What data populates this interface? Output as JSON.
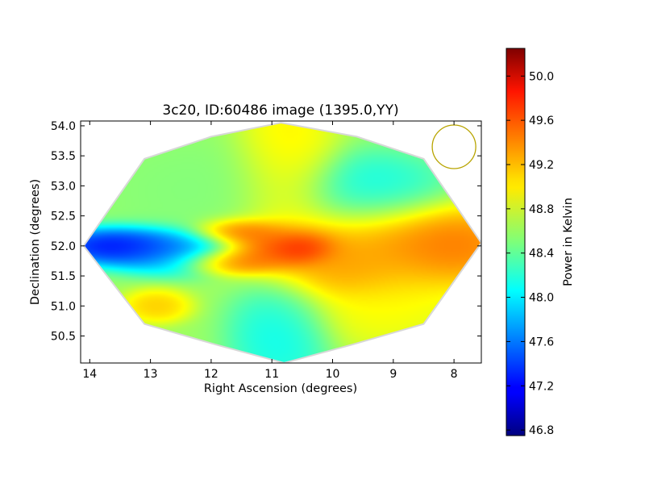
{
  "chart_data": {
    "type": "heatmap",
    "title": "3c20, ID:60486 image (1395.0,YY)",
    "xlabel": "Right Ascension (degrees)",
    "ylabel": "Declination (degrees)",
    "colorbar_label": "Power in Kelvin",
    "xlim": [
      14.15,
      7.55
    ],
    "ylim": [
      50.05,
      54.08
    ],
    "x_ticks": [
      "14",
      "13",
      "12",
      "11",
      "10",
      "9",
      "8"
    ],
    "x_tick_values": [
      14,
      13,
      12,
      11,
      10,
      9,
      8
    ],
    "y_ticks": [
      "50.5",
      "51.0",
      "51.5",
      "52.0",
      "52.5",
      "53.0",
      "53.5",
      "54.0"
    ],
    "y_tick_values": [
      50.5,
      51.0,
      51.5,
      52.0,
      52.5,
      53.0,
      53.5,
      54.0
    ],
    "colorbar_range": [
      46.75,
      50.25
    ],
    "colorbar_ticks": [
      "46.8",
      "47.2",
      "47.6",
      "48.0",
      "48.4",
      "48.8",
      "49.2",
      "49.6",
      "50.0"
    ],
    "colorbar_tick_values": [
      46.8,
      47.2,
      47.6,
      48.0,
      48.4,
      48.8,
      49.2,
      49.6,
      50.0
    ],
    "colormap": "jet",
    "beam_circle": {
      "ra": 8.0,
      "dec": 53.65,
      "color": "#b8a400"
    },
    "footprint_vertices": [
      [
        14.1,
        52.0
      ],
      [
        13.1,
        53.45
      ],
      [
        12.0,
        53.82
      ],
      [
        10.85,
        54.05
      ],
      [
        9.6,
        53.82
      ],
      [
        8.5,
        53.45
      ],
      [
        7.55,
        52.05
      ],
      [
        8.5,
        50.7
      ],
      [
        9.7,
        50.35
      ],
      [
        10.8,
        50.05
      ],
      [
        11.9,
        50.35
      ],
      [
        13.1,
        50.7
      ]
    ],
    "features": [
      {
        "ra": 10.9,
        "dec": 52.0,
        "value": 49.9,
        "sigma_ra": 0.55,
        "sigma_dec": 0.22
      },
      {
        "ra": 10.5,
        "dec": 51.95,
        "value": 50.0,
        "sigma_ra": 0.3,
        "sigma_dec": 0.15
      },
      {
        "ra": 11.5,
        "dec": 52.25,
        "value": 49.7,
        "sigma_ra": 0.4,
        "sigma_dec": 0.12
      },
      {
        "ra": 11.6,
        "dec": 51.75,
        "value": 49.6,
        "sigma_ra": 0.5,
        "sigma_dec": 0.12
      },
      {
        "ra": 8.2,
        "dec": 52.0,
        "value": 49.6,
        "sigma_ra": 0.7,
        "sigma_dec": 0.35
      },
      {
        "ra": 9.4,
        "dec": 52.0,
        "value": 49.3,
        "sigma_ra": 1.0,
        "sigma_dec": 0.45
      },
      {
        "ra": 10.75,
        "dec": 53.3,
        "value": 49.1,
        "sigma_ra": 0.45,
        "sigma_dec": 0.8
      },
      {
        "ra": 9.2,
        "dec": 51.1,
        "value": 49.0,
        "sigma_ra": 0.8,
        "sigma_dec": 0.45
      },
      {
        "ra": 13.4,
        "dec": 52.0,
        "value": 46.85,
        "sigma_ra": 0.65,
        "sigma_dec": 0.17
      },
      {
        "ra": 12.6,
        "dec": 51.9,
        "value": 47.6,
        "sigma_ra": 0.6,
        "sigma_dec": 0.2
      },
      {
        "ra": 10.85,
        "dec": 50.55,
        "value": 48.0,
        "sigma_ra": 0.45,
        "sigma_dec": 0.5
      },
      {
        "ra": 9.4,
        "dec": 52.9,
        "value": 48.0,
        "sigma_ra": 0.7,
        "sigma_dec": 0.35
      },
      {
        "ra": 12.0,
        "dec": 52.9,
        "value": 48.5,
        "sigma_ra": 1.0,
        "sigma_dec": 0.5
      },
      {
        "ra": 12.9,
        "dec": 51.0,
        "value": 49.2,
        "sigma_ra": 0.3,
        "sigma_dec": 0.15
      },
      {
        "ra": 9.8,
        "dec": 51.6,
        "value": 49.4,
        "sigma_ra": 0.55,
        "sigma_dec": 0.25
      }
    ],
    "background_value": 48.6
  }
}
